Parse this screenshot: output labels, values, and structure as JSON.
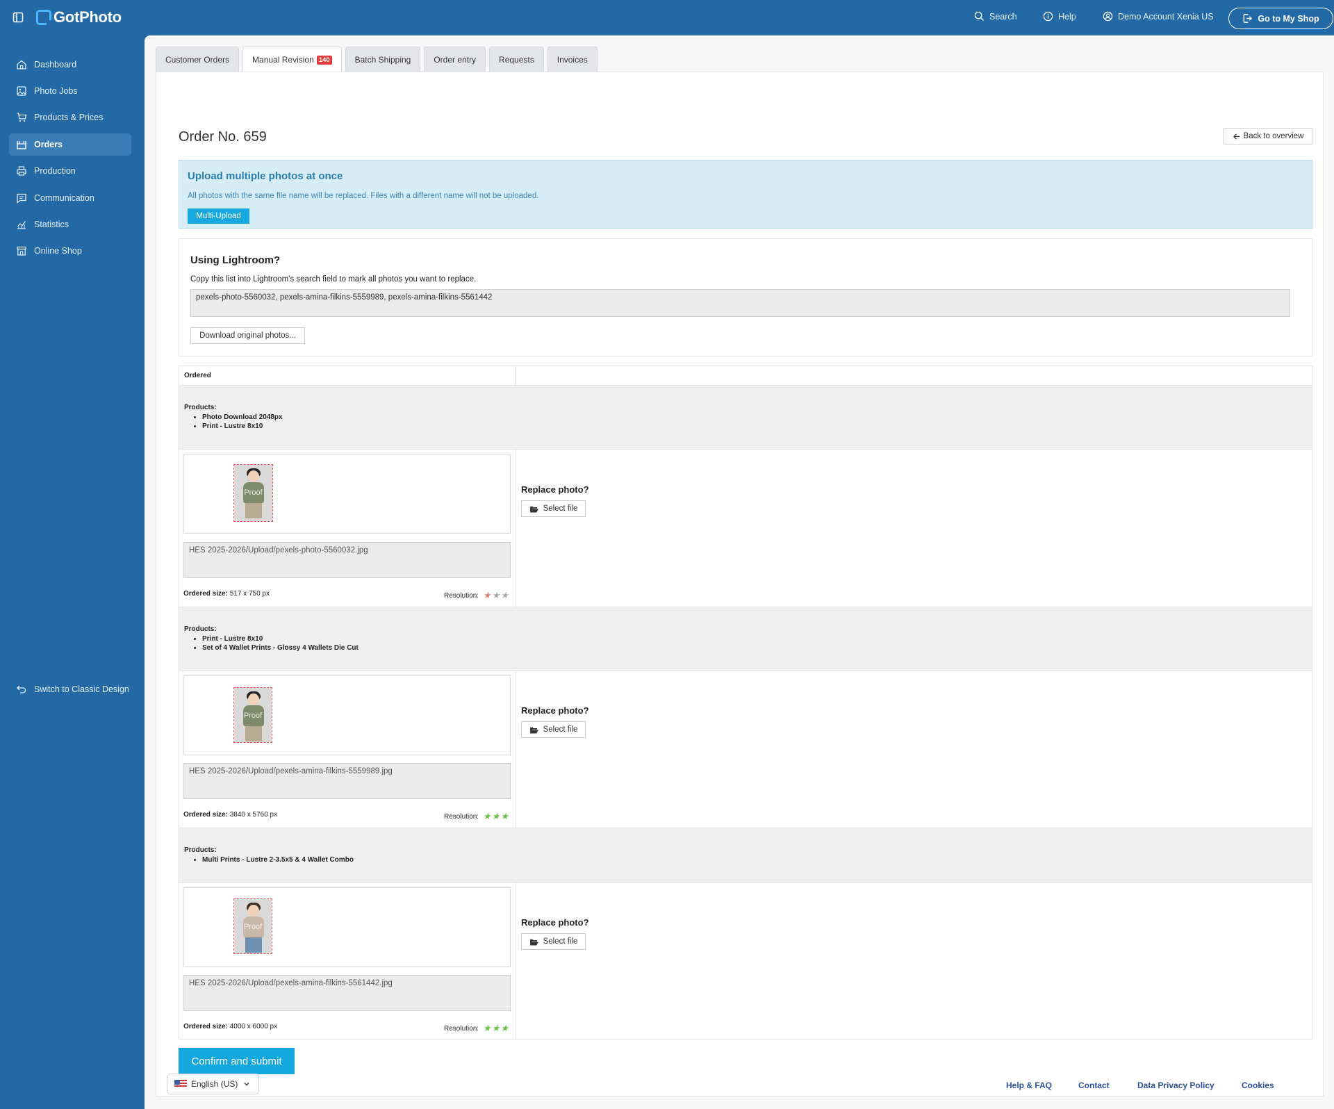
{
  "topbar": {
    "logo": "GotPhoto",
    "search": "Search",
    "help": "Help",
    "account": "Demo Account Xenia US",
    "shop_button": "Go to My Shop"
  },
  "sidebar": {
    "items": [
      {
        "label": "Dashboard",
        "icon": "home-icon"
      },
      {
        "label": "Photo Jobs",
        "icon": "image-icon"
      },
      {
        "label": "Products & Prices",
        "icon": "cart-icon"
      },
      {
        "label": "Orders",
        "icon": "orders-icon",
        "active": true
      },
      {
        "label": "Production",
        "icon": "printer-icon"
      },
      {
        "label": "Communication",
        "icon": "message-icon"
      },
      {
        "label": "Statistics",
        "icon": "chart-icon"
      },
      {
        "label": "Online Shop",
        "icon": "store-icon"
      }
    ],
    "classic": "Switch to Classic Design"
  },
  "tabs": [
    {
      "label": "Customer Orders"
    },
    {
      "label": "Manual Revision",
      "badge": "140",
      "active": true
    },
    {
      "label": "Batch Shipping"
    },
    {
      "label": "Order entry"
    },
    {
      "label": "Requests"
    },
    {
      "label": "Invoices"
    }
  ],
  "page": {
    "title": "Order No. 659",
    "back": "Back to overview"
  },
  "upload": {
    "title": "Upload multiple photos at once",
    "text": "All photos with the same file name will be replaced. Files with a different name will not be uploaded.",
    "button": "Multi-Upload"
  },
  "lightroom": {
    "title": "Using Lightroom?",
    "text": "Copy this list into Lightroom's search field to mark all photos you want to replace.",
    "list": "pexels-photo-5560032, pexels-amina-filkins-5559989, pexels-amina-filkins-5561442",
    "download": "Download original photos..."
  },
  "table": {
    "ordered_header": "Ordered",
    "products_label": "Products:",
    "replace_label": "Replace photo?",
    "select_file": "Select file",
    "ordered_size_label": "Ordered size:",
    "resolution_label": "Resolution:",
    "proof_text": "Proof",
    "items": [
      {
        "products": [
          "Photo Download 2048px",
          "Print - Lustre 8x10"
        ],
        "file": "HES 2025-2026/Upload/pexels-photo-5560032.jpg",
        "size": "517 x 750 px",
        "resolution_stars": 1,
        "resolution_color": "#e07b6e"
      },
      {
        "products": [
          "Print - Lustre 8x10",
          "Set of 4 Wallet Prints - Glossy 4 Wallets Die Cut"
        ],
        "file": "HES 2025-2026/Upload/pexels-amina-filkins-5559989.jpg",
        "size": "3840 x 5760 px",
        "resolution_stars": 3,
        "resolution_color": "#6cc04a"
      },
      {
        "products": [
          "Multi Prints - Lustre 2-3.5x5 & 4 Wallet Combo"
        ],
        "file": "HES 2025-2026/Upload/pexels-amina-filkins-5561442.jpg",
        "size": "4000 x 6000 px",
        "resolution_stars": 3,
        "resolution_color": "#6cc04a"
      }
    ]
  },
  "confirm": "Confirm and submit",
  "footer": {
    "language": "English (US)",
    "links": [
      "Help & FAQ",
      "Contact",
      "Data Privacy Policy",
      "Cookies"
    ]
  }
}
